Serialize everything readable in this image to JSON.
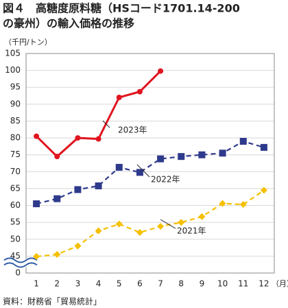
{
  "chart_data": {
    "type": "line",
    "title": [
      "図４　高糖度原料糖（HSコード1701.14-200",
      "の豪州）の輸入価格の推移"
    ],
    "y_unit": "（千円/トン）",
    "x_unit": "（月）",
    "source": "資料：財務省「貿易統計」",
    "categories": [
      "1",
      "2",
      "3",
      "4",
      "5",
      "6",
      "7",
      "8",
      "9",
      "10",
      "11",
      "12"
    ],
    "series": [
      {
        "name": "2023年",
        "color": "#e0141e",
        "marker": "circle",
        "dashed": false,
        "values": [
          80.5,
          74.5,
          80,
          79.7,
          92,
          93.7,
          99.8,
          null,
          null,
          null,
          null,
          null
        ]
      },
      {
        "name": "2022年",
        "color": "#2e3a8c",
        "marker": "square",
        "dashed": true,
        "values": [
          60.5,
          62,
          64.7,
          65.8,
          71.3,
          69.8,
          73.8,
          74.5,
          75,
          75.5,
          79,
          77.2
        ]
      },
      {
        "name": "2021年",
        "color": "#f5c000",
        "marker": "diamond",
        "dashed": true,
        "values": [
          44,
          45.5,
          48,
          52.5,
          54.5,
          52,
          53.8,
          55,
          56.7,
          60.6,
          60.3,
          64.5
        ]
      }
    ],
    "ylim": [
      0,
      105
    ],
    "axis_break": [
      0,
      45
    ],
    "yticks": [
      0,
      45,
      50,
      55,
      60,
      65,
      70,
      75,
      80,
      85,
      90,
      95,
      100,
      105
    ],
    "grid": true
  }
}
